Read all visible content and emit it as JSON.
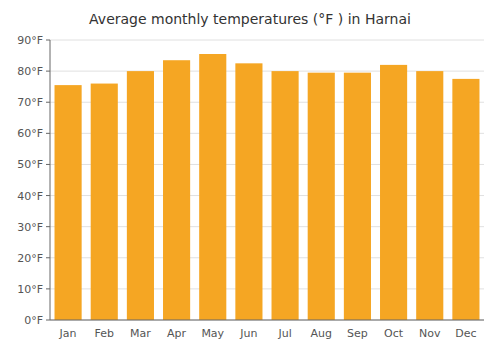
{
  "chart_data": {
    "type": "bar",
    "title": "Average monthly temperatures (°F ) in Harnai",
    "categories": [
      "Jan",
      "Feb",
      "Mar",
      "Apr",
      "May",
      "Jun",
      "Jul",
      "Aug",
      "Sep",
      "Oct",
      "Nov",
      "Dec"
    ],
    "values": [
      75.5,
      76.0,
      80.0,
      83.5,
      85.5,
      82.5,
      80.0,
      79.5,
      79.5,
      82.0,
      80.0,
      77.5
    ],
    "color": "#F5A623",
    "ylim": [
      0,
      90
    ],
    "yticks": [
      {
        "value": 0,
        "label": "0°F"
      },
      {
        "value": 10,
        "label": "10°F"
      },
      {
        "value": 20,
        "label": "20°F"
      },
      {
        "value": 30,
        "label": "30°F"
      },
      {
        "value": 40,
        "label": "40°F"
      },
      {
        "value": 50,
        "label": "50°F"
      },
      {
        "value": 60,
        "label": "60°F"
      },
      {
        "value": 70,
        "label": "70°F"
      },
      {
        "value": 80,
        "label": "80°F"
      },
      {
        "value": 90,
        "label": "90°F"
      }
    ],
    "grid": true
  }
}
